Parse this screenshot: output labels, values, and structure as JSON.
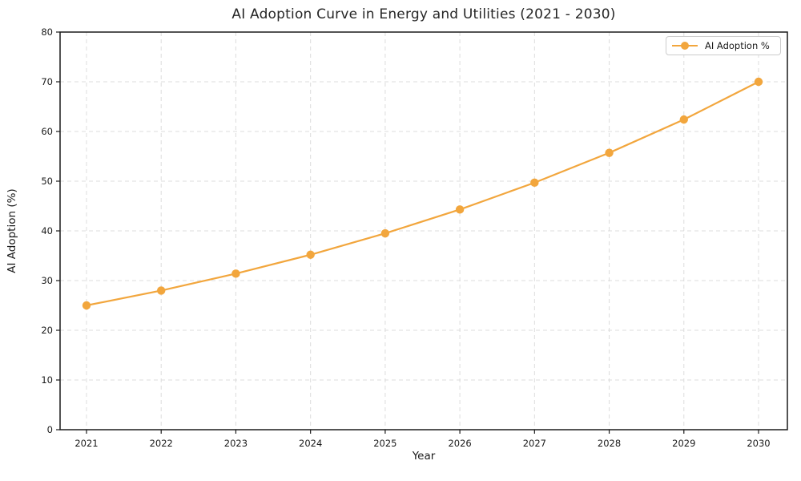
{
  "chart_data": {
    "type": "line",
    "title": "AI Adoption Curve in Energy and Utilities (2021 - 2030)",
    "xlabel": "Year",
    "ylabel": "AI Adoption (%)",
    "categories": [
      "2021",
      "2022",
      "2023",
      "2024",
      "2025",
      "2026",
      "2027",
      "2028",
      "2029",
      "2030"
    ],
    "series": [
      {
        "name": "AI Adoption %",
        "color": "#F2A63D",
        "values": [
          25.0,
          28.0,
          31.4,
          35.2,
          39.5,
          44.3,
          49.7,
          55.7,
          62.4,
          70.0
        ]
      }
    ],
    "ylim": [
      0,
      80
    ],
    "yticks": [
      0,
      10,
      20,
      30,
      40,
      50,
      60,
      70,
      80
    ],
    "grid": true,
    "grid_style": "dashed",
    "legend_position": "upper right"
  },
  "colors": {
    "series": "#F2A63D",
    "grid": "#dcdcdc",
    "spine": "#1a1a1a",
    "tick_text": "#1a1a1a",
    "title_text": "#262626",
    "legend_border": "#cccccc",
    "background": "#ffffff"
  }
}
